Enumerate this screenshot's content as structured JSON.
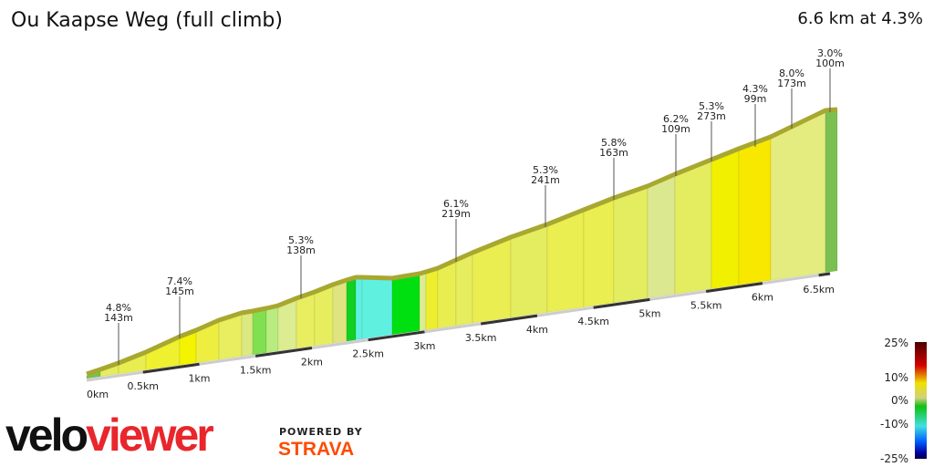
{
  "header": {
    "title": "Ou Kaapse Weg (full climb)",
    "summary": "6.6 km at 4.3%"
  },
  "branding": {
    "logo_velo": "velo",
    "logo_viewer": "viewer",
    "powered_by": "POWERED BY",
    "strava": "STRAVA"
  },
  "chart_data": {
    "type": "area",
    "title": "Ou Kaapse Weg (full climb)",
    "x_ticks": [
      "0km",
      "0.5km",
      "1km",
      "1.5km",
      "2km",
      "2.5km",
      "3km",
      "3.5km",
      "4km",
      "4.5km",
      "5km",
      "5.5km",
      "6km",
      "6.5km"
    ],
    "annotations": [
      {
        "grade": "4.8%",
        "length": "143m"
      },
      {
        "grade": "7.4%",
        "length": "145m"
      },
      {
        "grade": "5.3%",
        "length": "138m"
      },
      {
        "grade": "6.1%",
        "length": "219m"
      },
      {
        "grade": "5.3%",
        "length": "241m"
      },
      {
        "grade": "5.8%",
        "length": "163m"
      },
      {
        "grade": "6.2%",
        "length": "109m"
      },
      {
        "grade": "5.3%",
        "length": "273m"
      },
      {
        "grade": "4.3%",
        "length": "99m"
      },
      {
        "grade": "8.0%",
        "length": "173m"
      },
      {
        "grade": "3.0%",
        "length": "100m"
      }
    ],
    "legend": {
      "labels": [
        "25%",
        "10%",
        "0%",
        "-10%",
        "-25%"
      ],
      "colors": [
        "#4a0000",
        "#d40000",
        "#f0e000",
        "#d0d080",
        "#10c010",
        "#40e0e0",
        "#0060ff",
        "#0000a0",
        "#000040"
      ]
    },
    "strip_colors": [
      "#7ac050",
      "#e4ec60",
      "#e8ee50",
      "#eef030",
      "#f4f400",
      "#eeee40",
      "#e8ee60",
      "#dce880",
      "#80e050",
      "#b8ec80",
      "#dcec90",
      "#e8ee60",
      "#e6ee60",
      "#e0e480",
      "#10d020",
      "#60f0e0",
      "#60f0e0",
      "#00e010",
      "#dcec90",
      "#eeee30",
      "#e8ee50",
      "#e6ee60",
      "#eaee50",
      "#e4ec60",
      "#eaee50",
      "#eaee50",
      "#e4ec60",
      "#dce890",
      "#e4ec60",
      "#f0f000",
      "#f8e800",
      "#e4ec80"
    ]
  }
}
